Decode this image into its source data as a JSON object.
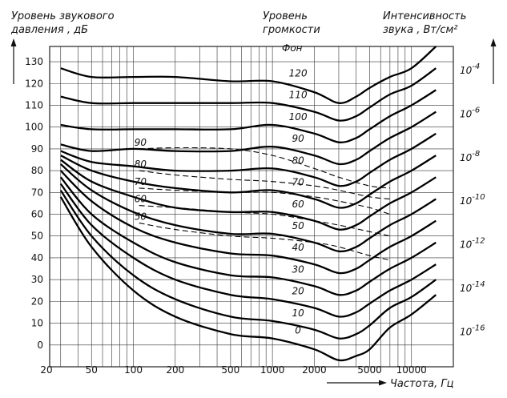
{
  "chart_data": {
    "type": "line",
    "title": "",
    "ylabel_left": [
      "Уровень звукового",
      "давления , дБ"
    ],
    "ylabel_middle": [
      "Уровень",
      "громкости"
    ],
    "ylabel_right": [
      "Интенсивность",
      "звука , Вт/см²"
    ],
    "xlabel": "Частота, Гц",
    "phon_header": "Фон",
    "x_scale": "log",
    "xlim": [
      25,
      20000
    ],
    "ylim": [
      -10,
      137
    ],
    "grid": true,
    "y_ticks": [
      "0",
      "10",
      "20",
      "30",
      "40",
      "50",
      "60",
      "70",
      "80",
      "90",
      "100",
      "110",
      "120",
      "130"
    ],
    "x_ticks": [
      {
        "v": 20,
        "t": "20"
      },
      {
        "v": 50,
        "t": "50"
      },
      {
        "v": 100,
        "t": "100"
      },
      {
        "v": 200,
        "t": "200"
      },
      {
        "v": 500,
        "t": "500"
      },
      {
        "v": 1000,
        "t": "1000"
      },
      {
        "v": 2000,
        "t": "2000"
      },
      {
        "v": 5000,
        "t": "5000"
      },
      {
        "v": 10000,
        "t": "10000"
      }
    ],
    "intensity_ticks": [
      {
        "db": 126,
        "base": "10",
        "exp": "-4"
      },
      {
        "db": 106,
        "base": "10",
        "exp": "-6"
      },
      {
        "db": 86,
        "base": "10",
        "exp": "-8"
      },
      {
        "db": 66,
        "base": "10",
        "exp": "-10"
      },
      {
        "db": 46,
        "base": "10",
        "exp": "-12"
      },
      {
        "db": 26,
        "base": "10",
        "exp": "-14"
      },
      {
        "db": 6,
        "base": "10",
        "exp": "-16"
      }
    ],
    "x": [
      30,
      50,
      100,
      200,
      500,
      1000,
      2000,
      3000,
      4000,
      5000,
      7000,
      10000,
      15000
    ],
    "series": [
      {
        "name": "0",
        "values": [
          68,
          45,
          25,
          13,
          5,
          3,
          -2,
          -7,
          -5,
          -2,
          8,
          14,
          23
        ]
      },
      {
        "name": "10",
        "values": [
          71,
          50,
          32,
          21,
          13,
          11,
          7,
          3,
          5,
          9,
          17,
          22,
          30
        ]
      },
      {
        "name": "20",
        "values": [
          74,
          55,
          40,
          30,
          23,
          21,
          17,
          13,
          15,
          19,
          25,
          30,
          37
        ]
      },
      {
        "name": "30",
        "values": [
          77,
          60,
          47,
          38,
          32,
          31,
          27,
          23,
          25,
          29,
          35,
          40,
          47
        ]
      },
      {
        "name": "40",
        "values": [
          80,
          66,
          54,
          47,
          42,
          41,
          37,
          33,
          35,
          39,
          45,
          50,
          57
        ]
      },
      {
        "name": "50",
        "values": [
          83,
          71,
          61,
          55,
          51,
          51,
          47,
          43,
          45,
          49,
          55,
          60,
          67
        ]
      },
      {
        "name": "60",
        "values": [
          85,
          75,
          68,
          63,
          61,
          61,
          57,
          53,
          55,
          59,
          65,
          70,
          77
        ]
      },
      {
        "name": "70",
        "values": [
          87,
          80,
          75,
          72,
          70,
          71,
          67,
          63,
          65,
          69,
          75,
          80,
          87
        ]
      },
      {
        "name": "80",
        "values": [
          89,
          84,
          82,
          80,
          80,
          81,
          77,
          73,
          75,
          79,
          85,
          90,
          97
        ]
      },
      {
        "name": "90",
        "values": [
          92,
          89,
          90,
          89,
          89,
          91,
          87,
          83,
          85,
          89,
          95,
          100,
          107
        ]
      },
      {
        "name": "100",
        "values": [
          101,
          99,
          99,
          99,
          99,
          101,
          97,
          93,
          95,
          99,
          105,
          110,
          117
        ]
      },
      {
        "name": "110",
        "values": [
          114,
          111,
          111,
          111,
          111,
          111,
          107,
          103,
          105,
          109,
          115,
          119,
          127
        ]
      },
      {
        "name": "120",
        "values": [
          127,
          123,
          123,
          123,
          121,
          121,
          116,
          111,
          114,
          118,
          123,
          127,
          137
        ]
      }
    ],
    "dashed_series": [
      {
        "name": "90",
        "x": [
          110,
          200,
          500,
          1000,
          2000,
          3000,
          5000,
          7000
        ],
        "values": [
          90,
          90.5,
          90,
          87,
          81,
          77,
          73,
          72
        ]
      },
      {
        "name": "80",
        "x": [
          110,
          200,
          500,
          1000,
          2000,
          3000,
          5000,
          7000
        ],
        "values": [
          80,
          78,
          76,
          75,
          73,
          71,
          68,
          67
        ]
      },
      {
        "name": "70",
        "x": [
          110,
          200,
          500,
          1000,
          2000,
          3000,
          5000,
          7000
        ],
        "values": [
          72,
          71,
          70,
          70,
          68,
          66,
          63,
          60
        ]
      },
      {
        "name": "60",
        "x": [
          110,
          200,
          500,
          1000,
          2000,
          3000,
          5000,
          7000
        ],
        "values": [
          64,
          63,
          61,
          60,
          57,
          55,
          52,
          50
        ]
      },
      {
        "name": "50",
        "x": [
          110,
          200,
          500,
          1000,
          2000,
          3000,
          5000,
          7000
        ],
        "values": [
          56,
          53,
          50,
          49,
          47,
          45,
          41,
          39
        ]
      }
    ]
  }
}
